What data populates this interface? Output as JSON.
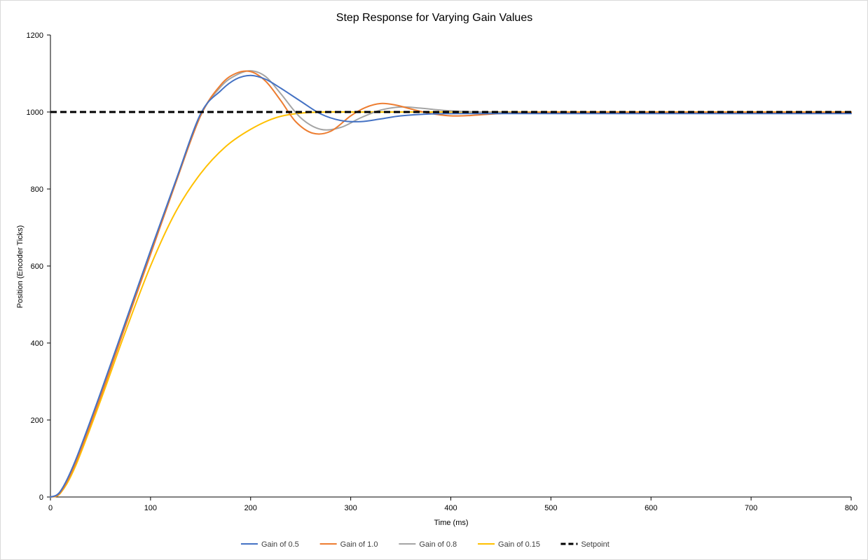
{
  "chart_data": {
    "type": "line",
    "title": "Step Response for Varying Gain Values",
    "xlabel": "Time (ms)",
    "ylabel": "Position (Encoder Ticks)",
    "xlim": [
      0,
      800
    ],
    "ylim": [
      0,
      1200
    ],
    "x_ticks": [
      0,
      100,
      200,
      300,
      400,
      500,
      600,
      700,
      800
    ],
    "y_ticks": [
      0,
      200,
      400,
      600,
      800,
      1000,
      1200
    ],
    "grid": false,
    "legend_position": "bottom",
    "series": [
      {
        "name": "Gain of 0.5",
        "color": "#4472C4",
        "dash": "solid",
        "x": [
          0,
          10,
          25,
          50,
          75,
          100,
          125,
          150,
          170,
          185,
          200,
          215,
          230,
          250,
          270,
          290,
          310,
          330,
          350,
          380,
          420,
          500,
          600,
          700,
          800
        ],
        "y": [
          0,
          15,
          95,
          270,
          455,
          640,
          820,
          995,
          1055,
          1085,
          1095,
          1085,
          1062,
          1028,
          995,
          978,
          975,
          982,
          990,
          995,
          996,
          996,
          996,
          996,
          996
        ]
      },
      {
        "name": "Gain of 1.0",
        "color": "#ED7D31",
        "dash": "solid",
        "x": [
          0,
          10,
          25,
          50,
          75,
          100,
          125,
          150,
          170,
          185,
          200,
          215,
          230,
          245,
          262,
          280,
          300,
          315,
          330,
          345,
          360,
          380,
          400,
          420,
          450,
          500,
          600,
          700,
          800
        ],
        "y": [
          0,
          12,
          88,
          260,
          445,
          630,
          815,
          990,
          1070,
          1100,
          1105,
          1080,
          1030,
          975,
          945,
          950,
          990,
          1012,
          1022,
          1018,
          1008,
          996,
          990,
          991,
          996,
          999,
          999,
          999,
          999
        ]
      },
      {
        "name": "Gain of 0.8",
        "color": "#A5A5A5",
        "dash": "solid",
        "x": [
          0,
          10,
          25,
          50,
          75,
          100,
          125,
          150,
          170,
          185,
          200,
          215,
          230,
          250,
          270,
          290,
          310,
          330,
          350,
          370,
          400,
          450,
          500,
          600,
          700,
          800
        ],
        "y": [
          0,
          12,
          88,
          262,
          448,
          632,
          815,
          990,
          1065,
          1095,
          1107,
          1092,
          1048,
          985,
          955,
          960,
          985,
          1005,
          1013,
          1010,
          1003,
          999,
          999,
          999,
          999,
          999
        ]
      },
      {
        "name": "Gain of 0.15",
        "color": "#FFC000",
        "dash": "solid",
        "x": [
          0,
          10,
          25,
          50,
          75,
          100,
          125,
          150,
          175,
          200,
          225,
          250,
          275,
          300,
          350,
          400,
          500,
          600,
          700,
          800
        ],
        "y": [
          0,
          10,
          80,
          250,
          430,
          600,
          740,
          840,
          910,
          955,
          985,
          997,
          1000,
          1000,
          1000,
          1000,
          1000,
          1000,
          1000,
          1000
        ]
      },
      {
        "name": "Setpoint",
        "color": "#000000",
        "dash": "dashed",
        "x": [
          0,
          800
        ],
        "y": [
          1000,
          1000
        ]
      }
    ]
  }
}
